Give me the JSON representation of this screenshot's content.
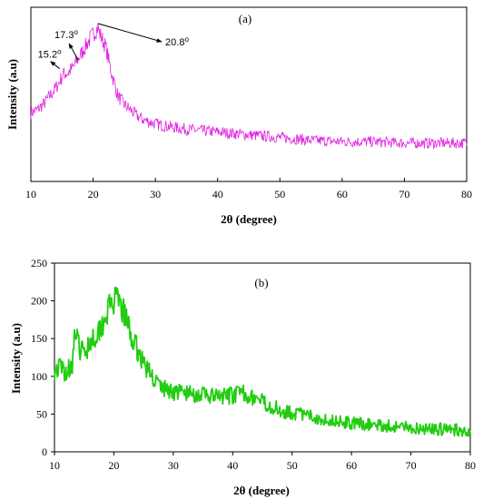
{
  "chart_data": [
    {
      "type": "line",
      "panel_label": "(a)",
      "xlabel": "2θ (degree)",
      "ylabel": "Intensity (a.u)",
      "xlim": [
        10,
        80
      ],
      "x_ticks": [
        "10",
        "20",
        "30",
        "40",
        "50",
        "60",
        "70",
        "80"
      ],
      "y_ticks": [],
      "grid": false,
      "color": "#e020e0",
      "annotations": [
        {
          "label": "15.2",
          "sup": "o",
          "x": 15.2
        },
        {
          "label": "17.3",
          "sup": "o",
          "x": 17.3
        },
        {
          "label": "20.8",
          "sup": "o",
          "x": 20.8
        }
      ],
      "series": [
        {
          "x": [
            10,
            11,
            12,
            13,
            14,
            15,
            15.2,
            16,
            17,
            17.3,
            18,
            19,
            20,
            20.8,
            21,
            22,
            23,
            24,
            25,
            26,
            27,
            28,
            30,
            32,
            35,
            40,
            45,
            50,
            55,
            60,
            65,
            70,
            75,
            80
          ],
          "y": [
            0.38,
            0.4,
            0.44,
            0.5,
            0.56,
            0.64,
            0.66,
            0.67,
            0.72,
            0.75,
            0.8,
            0.88,
            0.95,
            1.0,
            0.96,
            0.86,
            0.66,
            0.5,
            0.44,
            0.4,
            0.36,
            0.33,
            0.3,
            0.28,
            0.26,
            0.24,
            0.22,
            0.2,
            0.18,
            0.17,
            0.17,
            0.16,
            0.16,
            0.16
          ]
        }
      ]
    },
    {
      "type": "line",
      "panel_label": "(b)",
      "xlabel": "2θ (degree)",
      "ylabel": "Intensity (a.u)",
      "xlim": [
        10,
        80
      ],
      "ylim": [
        0,
        250
      ],
      "x_ticks": [
        "10",
        "20",
        "30",
        "40",
        "50",
        "60",
        "70",
        "80"
      ],
      "y_ticks": [
        "0",
        "50",
        "100",
        "150",
        "200",
        "250"
      ],
      "grid": false,
      "color": "#22cc11",
      "series": [
        {
          "x": [
            10,
            11,
            12,
            13,
            13.5,
            14,
            15,
            16,
            17,
            18,
            19,
            20,
            21,
            22,
            23,
            24,
            25,
            26,
            27,
            28,
            30,
            32,
            34,
            36,
            38,
            40,
            42,
            44,
            46,
            48,
            50,
            55,
            60,
            65,
            70,
            75,
            80
          ],
          "y": [
            108,
            112,
            105,
            118,
            160,
            140,
            130,
            148,
            155,
            170,
            188,
            200,
            195,
            178,
            150,
            135,
            118,
            105,
            95,
            85,
            80,
            78,
            76,
            74,
            72,
            75,
            78,
            70,
            62,
            55,
            52,
            44,
            38,
            35,
            32,
            30,
            28
          ]
        }
      ]
    }
  ]
}
